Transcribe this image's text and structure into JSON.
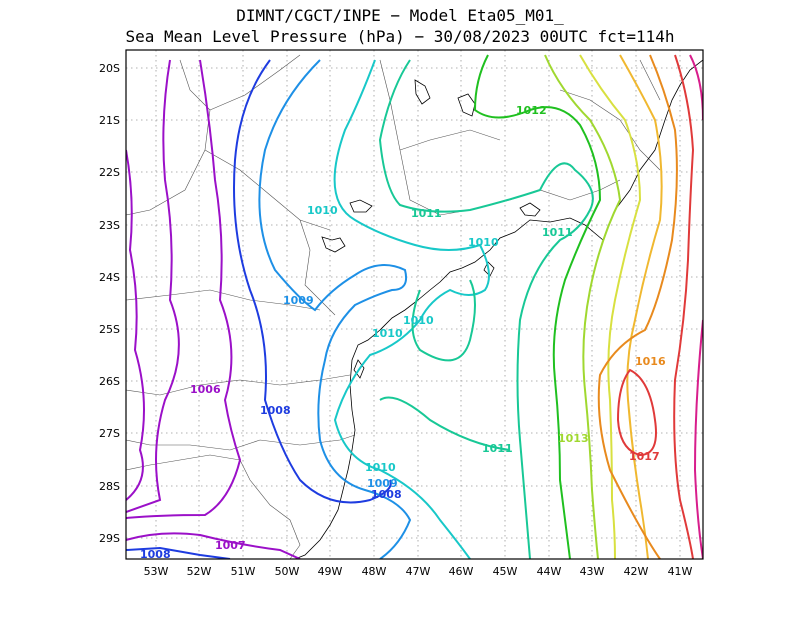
{
  "title": {
    "line1": "DIMNT/CGCT/INPE −  Model Eta05_M01_",
    "line2": "Sea Mean Level Pressure (hPa) − 30/08/2023 00UTC fct=114h"
  },
  "axes": {
    "lon_labels": [
      "53W",
      "52W",
      "51W",
      "50W",
      "49W",
      "48W",
      "47W",
      "46W",
      "45W",
      "44W",
      "43W",
      "42W",
      "41W"
    ],
    "lat_labels": [
      "20S",
      "21S",
      "22S",
      "23S",
      "24S",
      "25S",
      "26S",
      "27S",
      "28S",
      "29S"
    ]
  },
  "contour_labels": [
    {
      "text": "1006",
      "color": "#9b10c8"
    },
    {
      "text": "1007",
      "color": "#9b10c8"
    },
    {
      "text": "1008",
      "color": "#1e3ce0"
    },
    {
      "text": "1008",
      "color": "#1e3ce0"
    },
    {
      "text": "1008",
      "color": "#1e3ce0"
    },
    {
      "text": "1009",
      "color": "#1e90e6"
    },
    {
      "text": "1009",
      "color": "#1e90e6"
    },
    {
      "text": "1010",
      "color": "#18c8c8"
    },
    {
      "text": "1010",
      "color": "#18c8c8"
    },
    {
      "text": "1010",
      "color": "#18c8c8"
    },
    {
      "text": "1010",
      "color": "#18c8c8"
    },
    {
      "text": "1010",
      "color": "#18c8c8"
    },
    {
      "text": "1011",
      "color": "#18c896"
    },
    {
      "text": "1011",
      "color": "#18c896"
    },
    {
      "text": "1011",
      "color": "#18c896"
    },
    {
      "text": "1012",
      "color": "#20c020"
    },
    {
      "text": "1013",
      "color": "#a0d830"
    },
    {
      "text": "1016",
      "color": "#e88a1e"
    },
    {
      "text": "1017",
      "color": "#e03a3a"
    }
  ],
  "colors": {
    "c1006": "#9b10c8",
    "c1007": "#9b10c8",
    "c1008": "#1e3ce0",
    "c1009": "#1e90e6",
    "c1010": "#18c8c8",
    "c1011": "#18c896",
    "c1012": "#20c020",
    "c1013": "#a0d830",
    "c1014": "#d8e040",
    "c1015": "#f0b830",
    "c1016": "#e88a1e",
    "c1017": "#e03a3a",
    "c1018": "#d81e8c"
  }
}
